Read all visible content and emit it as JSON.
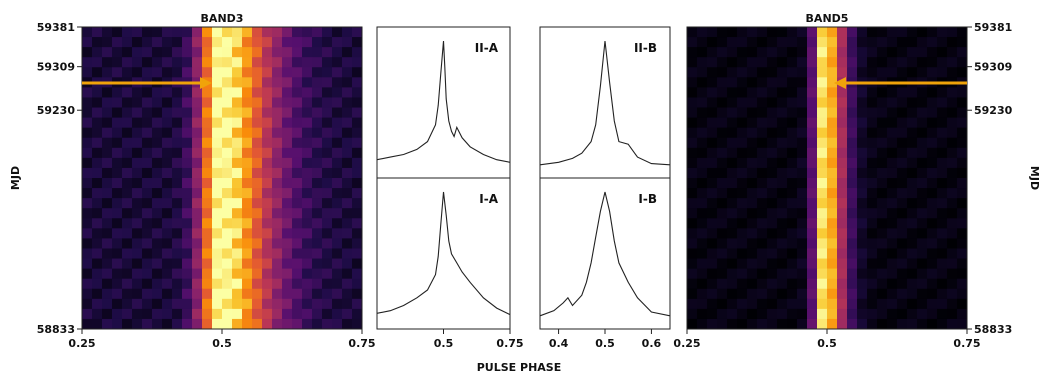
{
  "figure": {
    "xlabel": "PULSE PHASE",
    "ylabel_left": "MJD",
    "ylabel_right": "MJD",
    "arrow_color": "#f0a30a"
  },
  "chart_data": [
    {
      "type": "heatmap",
      "title": "BAND3",
      "xlim": [
        0.25,
        0.75
      ],
      "xticks": [
        "0.25",
        "0.5",
        "0.75"
      ],
      "ylim": [
        58833,
        59381
      ],
      "yticks": [
        "59381",
        "59309",
        "59230",
        "58833"
      ],
      "y_tick_values": [
        59381,
        59309,
        59230,
        58833
      ],
      "marked_y": 59330,
      "peak_phase": 0.495,
      "colormap": "inferno"
    },
    {
      "type": "line",
      "title": "II-A",
      "xlim": [
        0.25,
        0.75
      ],
      "xticks": [
        "0.5",
        "0.75"
      ],
      "x": [
        0.25,
        0.3,
        0.35,
        0.4,
        0.44,
        0.47,
        0.48,
        0.49,
        0.5,
        0.505,
        0.51,
        0.52,
        0.53,
        0.54,
        0.55,
        0.57,
        0.6,
        0.65,
        0.7,
        0.75
      ],
      "y": [
        0.08,
        0.1,
        0.12,
        0.16,
        0.22,
        0.35,
        0.5,
        0.75,
        1.0,
        0.8,
        0.55,
        0.38,
        0.3,
        0.26,
        0.33,
        0.25,
        0.18,
        0.12,
        0.08,
        0.06
      ]
    },
    {
      "type": "line",
      "title": "I-A",
      "xlim": [
        0.25,
        0.75
      ],
      "xticks": [
        "0.5",
        "0.75"
      ],
      "x": [
        0.25,
        0.3,
        0.35,
        0.4,
        0.44,
        0.47,
        0.48,
        0.49,
        0.5,
        0.51,
        0.52,
        0.53,
        0.55,
        0.57,
        0.6,
        0.65,
        0.7,
        0.75
      ],
      "y": [
        0.06,
        0.08,
        0.12,
        0.18,
        0.24,
        0.36,
        0.5,
        0.75,
        1.0,
        0.82,
        0.62,
        0.52,
        0.45,
        0.38,
        0.3,
        0.18,
        0.1,
        0.05
      ]
    },
    {
      "type": "line",
      "title": "II-B",
      "xlim": [
        0.36,
        0.64
      ],
      "xticks": [
        "0.4",
        "0.5",
        "0.6"
      ],
      "x": [
        0.36,
        0.4,
        0.43,
        0.45,
        0.47,
        0.48,
        0.49,
        0.5,
        0.51,
        0.52,
        0.53,
        0.55,
        0.57,
        0.6,
        0.64
      ],
      "y": [
        0.04,
        0.06,
        0.09,
        0.13,
        0.22,
        0.35,
        0.65,
        1.0,
        0.68,
        0.38,
        0.22,
        0.2,
        0.1,
        0.05,
        0.04
      ]
    },
    {
      "type": "line",
      "title": "I-B",
      "xlim": [
        0.36,
        0.64
      ],
      "xticks": [
        "0.4",
        "0.5",
        "0.6"
      ],
      "x": [
        0.36,
        0.39,
        0.41,
        0.42,
        0.43,
        0.45,
        0.46,
        0.47,
        0.48,
        0.49,
        0.5,
        0.51,
        0.52,
        0.53,
        0.55,
        0.57,
        0.6,
        0.64
      ],
      "y": [
        0.04,
        0.08,
        0.14,
        0.18,
        0.12,
        0.2,
        0.3,
        0.45,
        0.65,
        0.85,
        1.0,
        0.85,
        0.62,
        0.45,
        0.3,
        0.18,
        0.07,
        0.04
      ]
    },
    {
      "type": "heatmap",
      "title": "BAND5",
      "xlim": [
        0.25,
        0.75
      ],
      "xticks": [
        "0.25",
        "0.5",
        "0.75"
      ],
      "ylim": [
        58833,
        59381
      ],
      "yticks": [
        "59381",
        "59309",
        "59230",
        "58833"
      ],
      "y_tick_values": [
        59381,
        59309,
        59230,
        58833
      ],
      "marked_y": 59330,
      "peak_phase": 0.495,
      "colormap": "inferno"
    }
  ]
}
